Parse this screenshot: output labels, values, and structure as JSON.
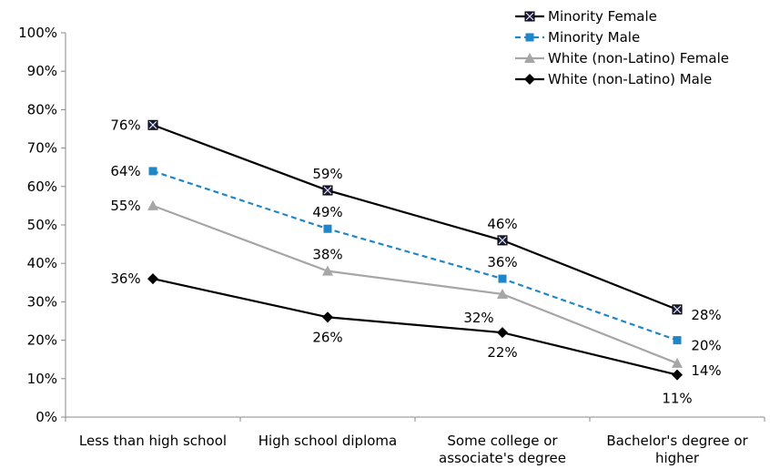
{
  "chart_data": {
    "type": "line",
    "title": "",
    "xlabel": "",
    "ylabel": "",
    "categories": [
      [
        "Less than high school"
      ],
      [
        "High school diploma"
      ],
      [
        "Some college or",
        "associate's degree"
      ],
      [
        "Bachelor's degree or",
        "higher"
      ]
    ],
    "y_ticks": [
      "0%",
      "10%",
      "20%",
      "30%",
      "40%",
      "50%",
      "60%",
      "70%",
      "80%",
      "90%",
      "100%"
    ],
    "ylim": [
      0,
      100
    ],
    "grid": false,
    "legend_position": "top-right",
    "series": [
      {
        "name": "Minority Female",
        "values": [
          76,
          59,
          46,
          28
        ],
        "labels": [
          "76%",
          "59%",
          "46%",
          "28%"
        ],
        "color": "#000000",
        "marker": "square-x",
        "dash": "solid"
      },
      {
        "name": "Minority Male",
        "values": [
          64,
          49,
          36,
          20
        ],
        "labels": [
          "64%",
          "49%",
          "36%",
          "20%"
        ],
        "color": "#1f86c8",
        "marker": "square",
        "dash": "dashed"
      },
      {
        "name": "White (non-Latino) Female",
        "values": [
          55,
          38,
          32,
          14
        ],
        "labels": [
          "55%",
          "38%",
          "32%",
          "14%"
        ],
        "color": "#a6a6a6",
        "marker": "triangle",
        "dash": "solid"
      },
      {
        "name": "White (non-Latino) Male",
        "values": [
          36,
          26,
          22,
          11
        ],
        "labels": [
          "36%",
          "26%",
          "22%",
          "11%"
        ],
        "color": "#000000",
        "marker": "diamond",
        "dash": "solid"
      }
    ]
  }
}
